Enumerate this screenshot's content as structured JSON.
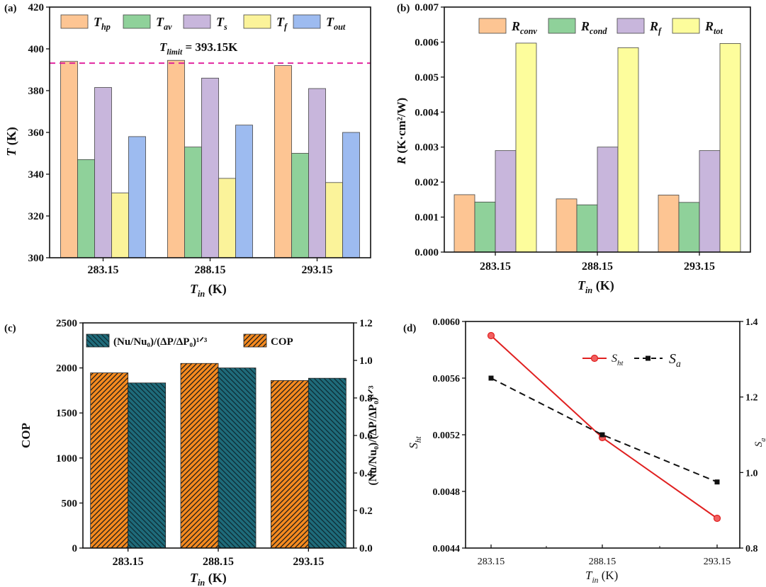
{
  "chart_data": [
    {
      "panel": "(a)",
      "type": "bar",
      "categories": [
        "283.15",
        "288.15",
        "293.15"
      ],
      "series": [
        {
          "name": "T_hp",
          "label": "T",
          "sub": "hp",
          "color": "#fdc593",
          "values": [
            394,
            394.5,
            392
          ]
        },
        {
          "name": "T_av",
          "label": "T",
          "sub": "av",
          "color": "#8fd19a",
          "values": [
            347,
            353,
            350
          ]
        },
        {
          "name": "T_s",
          "label": "T",
          "sub": "s",
          "color": "#c8b6dc",
          "values": [
            381.5,
            386,
            381
          ]
        },
        {
          "name": "T_f",
          "label": "T",
          "sub": "f",
          "color": "#fbf39a",
          "values": [
            331,
            338,
            336
          ]
        },
        {
          "name": "T_out",
          "label": "T",
          "sub": "out",
          "color": "#9dbbf0",
          "values": [
            358,
            363.5,
            360
          ]
        }
      ],
      "ylim": [
        300,
        420
      ],
      "yticks": [
        300,
        320,
        340,
        360,
        380,
        400,
        420
      ],
      "ylabel": "T",
      "ylabel_unit": " (K)",
      "xlabel": "T",
      "xlabel_sub": "in",
      "xlabel_unit": " (K)",
      "reference_line": {
        "value": 393.15,
        "color": "#e0189a",
        "label": "T",
        "label_sub": "limit",
        "label_rest": " = 393.15K"
      },
      "legend": "top"
    },
    {
      "panel": "(b)",
      "type": "bar",
      "categories": [
        "283.15",
        "288.15",
        "293.15"
      ],
      "series": [
        {
          "name": "R_conv",
          "label": "R",
          "sub": "conv",
          "color": "#fdc593",
          "values": [
            0.00164,
            0.00152,
            0.00163
          ]
        },
        {
          "name": "R_cond",
          "label": "R",
          "sub": "cond",
          "color": "#8fd19a",
          "values": [
            0.00143,
            0.00135,
            0.00142
          ]
        },
        {
          "name": "R_f",
          "label": "R",
          "sub": "f",
          "color": "#c8b6dc",
          "values": [
            0.0029,
            0.003,
            0.0029
          ]
        },
        {
          "name": "R_tot",
          "label": "R",
          "sub": "tot",
          "color": "#fdfd9c",
          "values": [
            0.00597,
            0.00584,
            0.00596
          ]
        }
      ],
      "ylim": [
        0,
        0.007
      ],
      "yticks": [
        "0.000",
        "0.001",
        "0.002",
        "0.003",
        "0.004",
        "0.005",
        "0.006",
        "0.007"
      ],
      "ylabel": "R",
      "ylabel_unit": " (K·cm²/W)",
      "xlabel": "T",
      "xlabel_sub": "in",
      "xlabel_unit": " (K)",
      "legend": "top"
    },
    {
      "panel": "(c)",
      "type": "bar",
      "categories": [
        "283.15",
        "288.15",
        "293.15"
      ],
      "series": [
        {
          "name": "COP",
          "label": "COP",
          "axis": "left",
          "color": "#f58a1f",
          "values": [
            1945,
            2050,
            1860
          ]
        },
        {
          "name": "(Nu/Nu0)/(ΔP/ΔP0)^1/3",
          "label": "(Nu/Nu₀)/(ΔP/ΔP₀)¹ᐟ³",
          "axis": "right",
          "color": "#1f6b7a",
          "values": [
            0.88,
            0.96,
            0.905
          ]
        }
      ],
      "ylim_left": [
        0,
        2500
      ],
      "yticks_left": [
        0,
        500,
        1000,
        1500,
        2000,
        2500
      ],
      "ylim_right": [
        0,
        1.2
      ],
      "yticks_right": [
        "0.0",
        "0.2",
        "0.4",
        "0.6",
        "0.8",
        "1.0",
        "1.2"
      ],
      "ylabel_left": "COP",
      "ylabel_right": "(Nu/Nu₀)/(ΔP/ΔP₀)¹ᐟ³",
      "xlabel": "T",
      "xlabel_sub": "in",
      "xlabel_unit": " (K)",
      "legend": "top"
    },
    {
      "panel": "(d)",
      "type": "line",
      "x": [
        "283.15",
        "288.15",
        "293.15"
      ],
      "series": [
        {
          "name": "S_ht",
          "label": "S",
          "sub": "ht",
          "axis": "left",
          "color": "#e02020",
          "marker": "circle",
          "dash": false,
          "values": [
            0.0059,
            0.00518,
            0.00461
          ]
        },
        {
          "name": "S_a",
          "label": "S",
          "sub": "a",
          "axis": "right",
          "color": "#111111",
          "marker": "square",
          "dash": true,
          "values": [
            1.25,
            1.1,
            0.975
          ]
        }
      ],
      "ylim_left": [
        0.0044,
        0.006
      ],
      "yticks_left": [
        "0.0044",
        "0.0048",
        "0.0052",
        "0.0056",
        "0.0060"
      ],
      "ylim_right": [
        0.8,
        1.4
      ],
      "yticks_right": [
        "0.8",
        "1.0",
        "1.2",
        "1.4"
      ],
      "ylabel_left": "S",
      "ylabel_left_sub": "ht",
      "ylabel_right": "S",
      "ylabel_right_sub": "a",
      "xlabel": "T",
      "xlabel_sub": "in",
      "xlabel_unit": " (K)",
      "legend": "top-right"
    }
  ]
}
